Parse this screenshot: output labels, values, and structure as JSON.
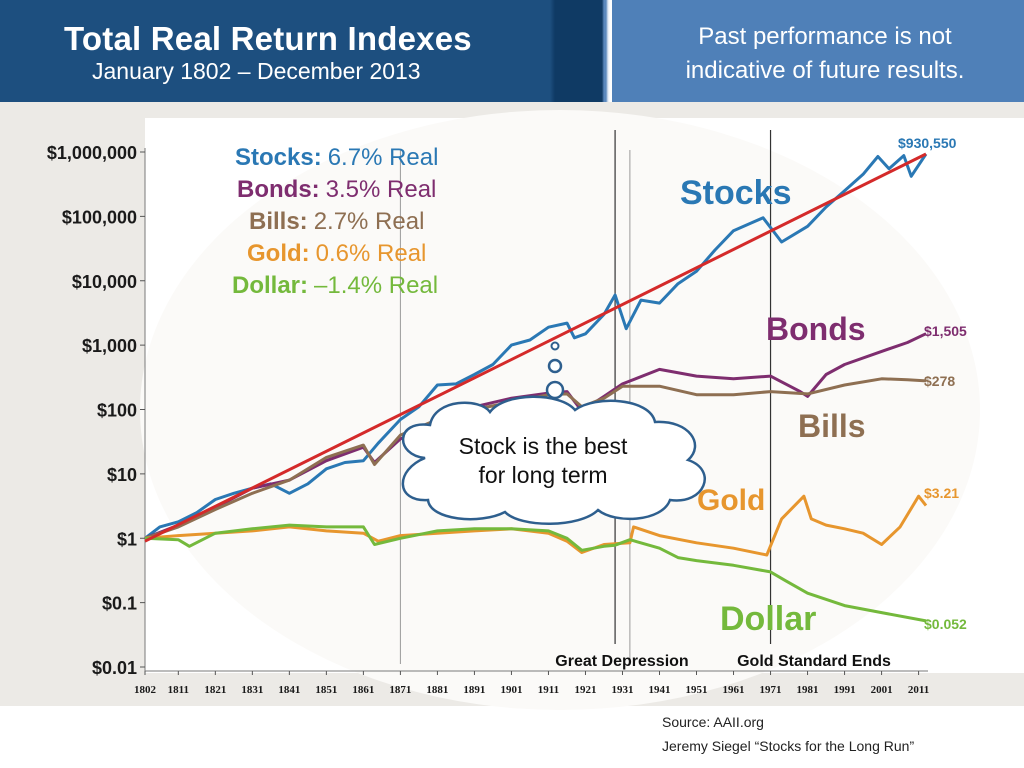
{
  "header": {
    "title": "Total Real Return Indexes",
    "subtitle": "January 1802 – December 2013",
    "disclaimer": "Past performance is not indicative of future results."
  },
  "legend": [
    {
      "name": "Stocks:",
      "rate": "6.7% Real",
      "color": "#2a78b4"
    },
    {
      "name": "Bonds:",
      "rate": "3.5% Real",
      "color": "#7e2d6f"
    },
    {
      "name": "Bills:",
      "rate": "2.7% Real",
      "color": "#8e6f52"
    },
    {
      "name": "Gold:",
      "rate": "0.6% Real",
      "color": "#e7962e"
    },
    {
      "name": "Dollar:",
      "rate": "–1.4% Real",
      "color": "#74b93c"
    }
  ],
  "callout": {
    "line1": "Stock is the best",
    "line2": "for long term"
  },
  "events": [
    {
      "label": "Great Depression",
      "year": 1929
    },
    {
      "label": "Gold Standard Ends",
      "year": 1971
    }
  ],
  "source": {
    "line1": "Source:  AAII.org",
    "line2": "Jeremy Siegel “Stocks for the Long Run”"
  },
  "chart_data": {
    "type": "line",
    "scale": "log",
    "xlim": [
      1802,
      2013
    ],
    "ylim": [
      0.01,
      1000000
    ],
    "y_ticks": [
      {
        "value": 1000000,
        "label": "$1,000,000"
      },
      {
        "value": 100000,
        "label": "$100,000"
      },
      {
        "value": 10000,
        "label": "$10,000"
      },
      {
        "value": 1000,
        "label": "$1,000"
      },
      {
        "value": 100,
        "label": "$100"
      },
      {
        "value": 10,
        "label": "$10"
      },
      {
        "value": 1,
        "label": "$1"
      },
      {
        "value": 0.1,
        "label": "$0.1"
      },
      {
        "value": 0.01,
        "label": "$0.01"
      }
    ],
    "x_ticks": [
      "1802",
      "1811",
      "1821",
      "1831",
      "1841",
      "1851",
      "1861",
      "1871",
      "1881",
      "1891",
      "1901",
      "1911",
      "1921",
      "1931",
      "1941",
      "1951",
      "1961",
      "1971",
      "1981",
      "1991",
      "2001",
      "2011"
    ],
    "vertical_gridline_years": [
      1871,
      1929,
      1933,
      1971
    ],
    "trendline": {
      "from": [
        1802,
        0.9
      ],
      "to": [
        2013,
        930550
      ],
      "color": "#d42a2a"
    },
    "series": [
      {
        "name": "Stocks",
        "color": "#2a78b4",
        "label": "Stocks",
        "end_label": "$930,550",
        "points": [
          [
            1802,
            1
          ],
          [
            1806,
            1.5
          ],
          [
            1811,
            1.8
          ],
          [
            1816,
            2.5
          ],
          [
            1821,
            4
          ],
          [
            1826,
            5
          ],
          [
            1831,
            6
          ],
          [
            1836,
            7
          ],
          [
            1841,
            5
          ],
          [
            1846,
            7
          ],
          [
            1851,
            12
          ],
          [
            1856,
            15
          ],
          [
            1861,
            16
          ],
          [
            1865,
            30
          ],
          [
            1871,
            70
          ],
          [
            1876,
            110
          ],
          [
            1881,
            240
          ],
          [
            1886,
            250
          ],
          [
            1891,
            350
          ],
          [
            1896,
            500
          ],
          [
            1901,
            1000
          ],
          [
            1906,
            1200
          ],
          [
            1911,
            1900
          ],
          [
            1916,
            2200
          ],
          [
            1918,
            1300
          ],
          [
            1921,
            1500
          ],
          [
            1926,
            3000
          ],
          [
            1929,
            6000
          ],
          [
            1932,
            1800
          ],
          [
            1936,
            5000
          ],
          [
            1941,
            4500
          ],
          [
            1946,
            9000
          ],
          [
            1951,
            14000
          ],
          [
            1956,
            30000
          ],
          [
            1961,
            60000
          ],
          [
            1966,
            80000
          ],
          [
            1969,
            95000
          ],
          [
            1974,
            40000
          ],
          [
            1981,
            70000
          ],
          [
            1986,
            140000
          ],
          [
            1991,
            250000
          ],
          [
            1996,
            450000
          ],
          [
            2000,
            850000
          ],
          [
            2003,
            550000
          ],
          [
            2007,
            880000
          ],
          [
            2009,
            420000
          ],
          [
            2013,
            930550
          ]
        ]
      },
      {
        "name": "Bonds",
        "color": "#7e2d6f",
        "label": "Bonds",
        "end_label": "$1,505",
        "points": [
          [
            1802,
            1
          ],
          [
            1811,
            1.6
          ],
          [
            1821,
            3
          ],
          [
            1831,
            6
          ],
          [
            1841,
            8
          ],
          [
            1851,
            16
          ],
          [
            1861,
            26
          ],
          [
            1864,
            15
          ],
          [
            1871,
            35
          ],
          [
            1881,
            60
          ],
          [
            1891,
            110
          ],
          [
            1901,
            150
          ],
          [
            1911,
            180
          ],
          [
            1916,
            190
          ],
          [
            1920,
            95
          ],
          [
            1926,
            160
          ],
          [
            1931,
            250
          ],
          [
            1941,
            420
          ],
          [
            1951,
            330
          ],
          [
            1961,
            300
          ],
          [
            1971,
            330
          ],
          [
            1979,
            190
          ],
          [
            1981,
            160
          ],
          [
            1986,
            350
          ],
          [
            1991,
            500
          ],
          [
            2001,
            800
          ],
          [
            2008,
            1100
          ],
          [
            2013,
            1505
          ]
        ]
      },
      {
        "name": "Bills",
        "color": "#8e6f52",
        "label": "Bills",
        "end_label": "$278",
        "points": [
          [
            1802,
            1
          ],
          [
            1811,
            1.5
          ],
          [
            1821,
            2.8
          ],
          [
            1831,
            5
          ],
          [
            1841,
            8
          ],
          [
            1851,
            18
          ],
          [
            1861,
            28
          ],
          [
            1864,
            14
          ],
          [
            1871,
            40
          ],
          [
            1881,
            70
          ],
          [
            1891,
            100
          ],
          [
            1901,
            130
          ],
          [
            1911,
            170
          ],
          [
            1916,
            175
          ],
          [
            1920,
            110
          ],
          [
            1926,
            150
          ],
          [
            1931,
            230
          ],
          [
            1941,
            230
          ],
          [
            1951,
            170
          ],
          [
            1961,
            170
          ],
          [
            1971,
            190
          ],
          [
            1981,
            175
          ],
          [
            1991,
            240
          ],
          [
            2001,
            300
          ],
          [
            2008,
            290
          ],
          [
            2013,
            278
          ]
        ]
      },
      {
        "name": "Gold",
        "color": "#e7962e",
        "label": "Gold",
        "end_label": "$3.21",
        "points": [
          [
            1802,
            1
          ],
          [
            1811,
            1.1
          ],
          [
            1821,
            1.2
          ],
          [
            1831,
            1.3
          ],
          [
            1841,
            1.5
          ],
          [
            1851,
            1.3
          ],
          [
            1861,
            1.2
          ],
          [
            1865,
            0.9
          ],
          [
            1871,
            1.1
          ],
          [
            1881,
            1.2
          ],
          [
            1891,
            1.3
          ],
          [
            1901,
            1.4
          ],
          [
            1911,
            1.2
          ],
          [
            1916,
            0.9
          ],
          [
            1920,
            0.6
          ],
          [
            1926,
            0.8
          ],
          [
            1933,
            0.85
          ],
          [
            1934,
            1.5
          ],
          [
            1941,
            1.1
          ],
          [
            1951,
            0.85
          ],
          [
            1961,
            0.7
          ],
          [
            1970,
            0.55
          ],
          [
            1974,
            2
          ],
          [
            1980,
            4.5
          ],
          [
            1982,
            2
          ],
          [
            1986,
            1.6
          ],
          [
            1991,
            1.4
          ],
          [
            1996,
            1.2
          ],
          [
            2001,
            0.8
          ],
          [
            2006,
            1.5
          ],
          [
            2011,
            4.5
          ],
          [
            2013,
            3.21
          ]
        ]
      },
      {
        "name": "Dollar",
        "color": "#74b93c",
        "label": "Dollar",
        "end_label": "$0.052",
        "points": [
          [
            1802,
            1
          ],
          [
            1811,
            0.95
          ],
          [
            1814,
            0.75
          ],
          [
            1821,
            1.2
          ],
          [
            1831,
            1.4
          ],
          [
            1841,
            1.6
          ],
          [
            1851,
            1.5
          ],
          [
            1861,
            1.5
          ],
          [
            1864,
            0.8
          ],
          [
            1871,
            1.0
          ],
          [
            1881,
            1.3
          ],
          [
            1891,
            1.4
          ],
          [
            1901,
            1.4
          ],
          [
            1911,
            1.3
          ],
          [
            1916,
            1.0
          ],
          [
            1920,
            0.65
          ],
          [
            1926,
            0.75
          ],
          [
            1929,
            0.78
          ],
          [
            1933,
            0.95
          ],
          [
            1941,
            0.7
          ],
          [
            1946,
            0.5
          ],
          [
            1951,
            0.45
          ],
          [
            1961,
            0.38
          ],
          [
            1971,
            0.3
          ],
          [
            1975,
            0.22
          ],
          [
            1981,
            0.14
          ],
          [
            1991,
            0.09
          ],
          [
            2001,
            0.07
          ],
          [
            2013,
            0.052
          ]
        ]
      }
    ]
  }
}
